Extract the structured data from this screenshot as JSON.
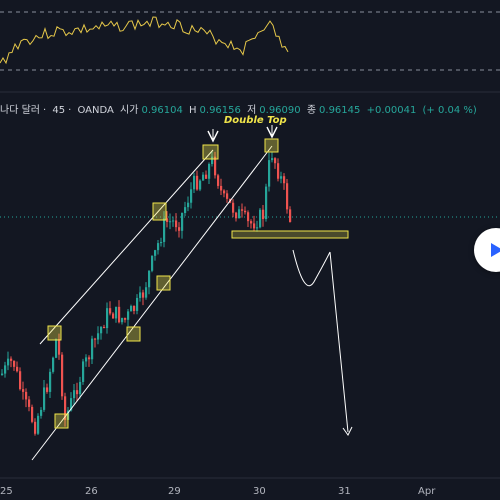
{
  "legend": {
    "symbol": "나다 달러",
    "interval": "45",
    "broker": "OANDA",
    "open_label": "시가",
    "open": "0.96104",
    "high_label": "H",
    "high": "0.96156",
    "low_label": "저",
    "low": "0.96090",
    "close_label": "종",
    "close": "0.96145",
    "change": "+0.00041",
    "change_pct": "(+ 0.04 %)"
  },
  "annotation": {
    "double_top": "Double Top"
  },
  "colors": {
    "bg": "#131722",
    "up": "#26a69a",
    "down": "#ef5350",
    "oscillator": "#e6c84a",
    "box": "#f0e44a",
    "line": "#ffffff"
  },
  "icons": {
    "play": "play-icon"
  },
  "chart_data": {
    "type": "candlestick",
    "x_ticks": [
      "25",
      "26",
      "29",
      "30",
      "31",
      "Apr"
    ],
    "oscillator_levels": [
      "upper-dashed",
      "lower-dashed"
    ]
  }
}
